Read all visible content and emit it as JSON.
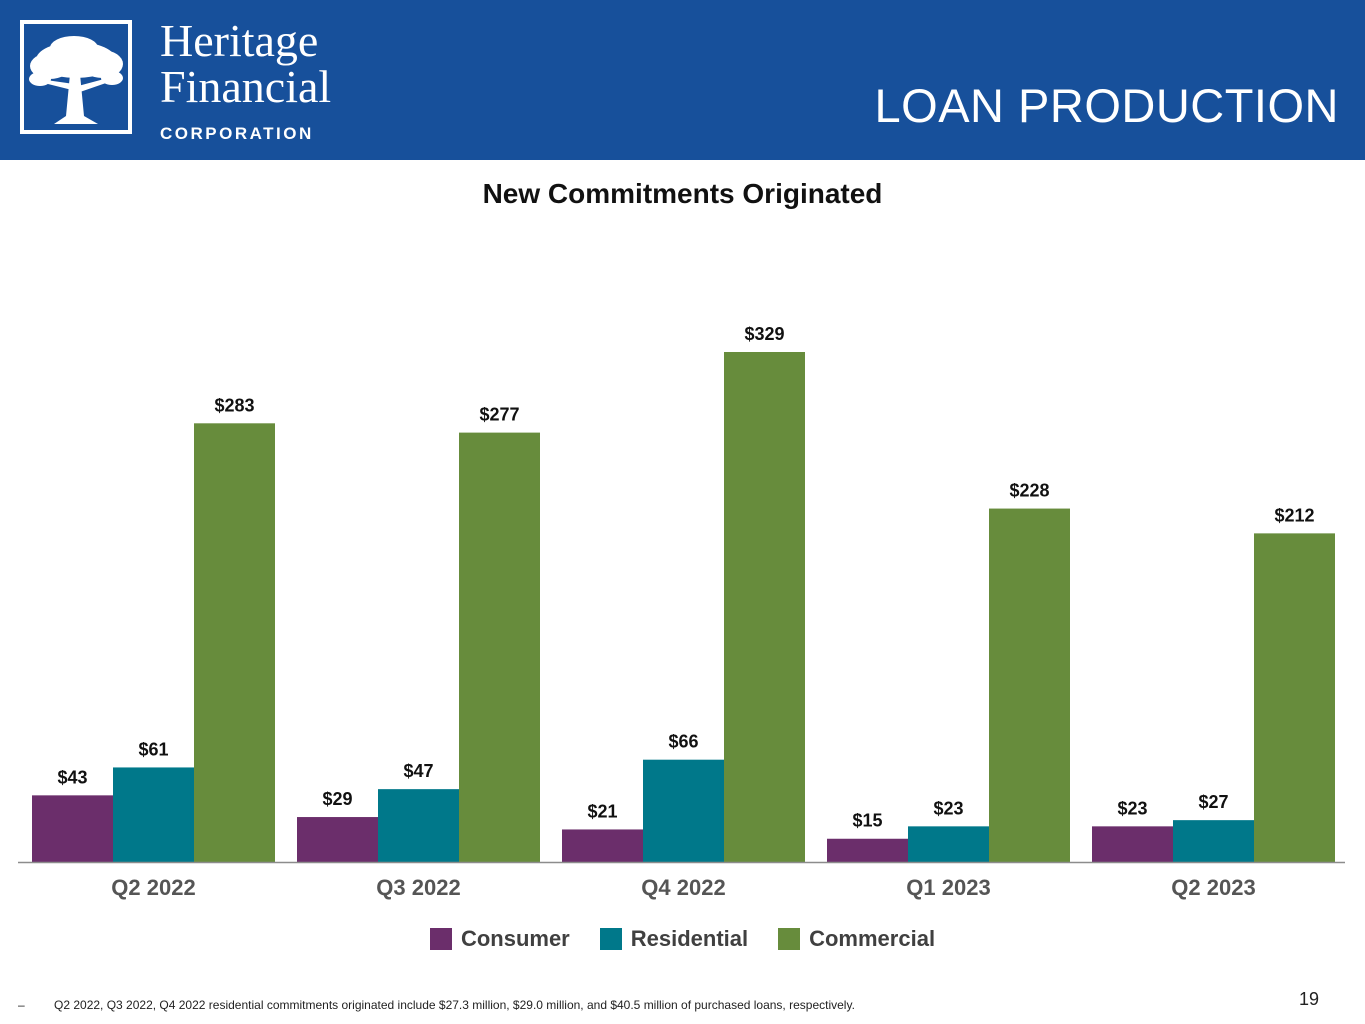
{
  "header": {
    "logo": {
      "line1": "Heritage",
      "line2": "Financial",
      "line3": "CORPORATION"
    },
    "title": "LOAN PRODUCTION",
    "background_color": "#17509b"
  },
  "chart_data": {
    "type": "bar",
    "title": "New Commitments Originated",
    "xlabel": "",
    "ylabel": "",
    "categories": [
      "Q2 2022",
      "Q3 2022",
      "Q4 2022",
      "Q1 2023",
      "Q2 2023"
    ],
    "series": [
      {
        "name": "Consumer",
        "color": "#6b2e6b",
        "values": [
          43,
          29,
          21,
          15,
          23
        ],
        "labels": [
          "$43",
          "$29",
          "$21",
          "$15",
          "$23"
        ]
      },
      {
        "name": "Residential",
        "color": "#00788a",
        "values": [
          61,
          47,
          66,
          23,
          27
        ],
        "labels": [
          "$61",
          "$47",
          "$66",
          "$23",
          "$27"
        ]
      },
      {
        "name": "Commercial",
        "color": "#678c3c",
        "values": [
          283,
          277,
          329,
          228,
          212
        ],
        "labels": [
          "$283",
          "$277",
          "$329",
          "$228",
          "$212"
        ]
      }
    ],
    "ylim": [
      0,
      329
    ],
    "grid": false,
    "legend_position": "bottom"
  },
  "footnote": {
    "marker": "–",
    "text": "Q2 2022, Q3 2022, Q4 2022  residential commitments originated include $27.3 million, $29.0 million, and  $40.5 million of purchased loans, respectively."
  },
  "page_number": "19"
}
